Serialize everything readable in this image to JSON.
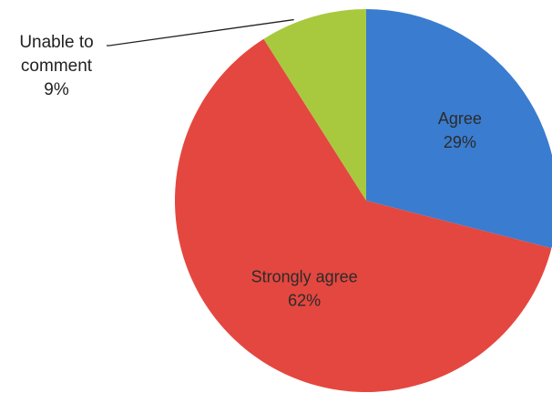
{
  "chart_data": {
    "type": "pie",
    "title": "",
    "slices": [
      {
        "label": "Agree",
        "value": 29,
        "value_text": "29%",
        "color": "#3a7ccf",
        "label_placement": "inside"
      },
      {
        "label": "Strongly agree",
        "value": 62,
        "value_text": "62%",
        "color": "#e4473f",
        "label_placement": "inside"
      },
      {
        "label": "Unable to comment",
        "label_lines": [
          "Unable to",
          "comment"
        ],
        "value": 9,
        "value_text": "9%",
        "color": "#a8c93e",
        "label_placement": "outside-left"
      }
    ],
    "start_angle_deg": 0,
    "direction": "clockwise",
    "legend": "none"
  }
}
